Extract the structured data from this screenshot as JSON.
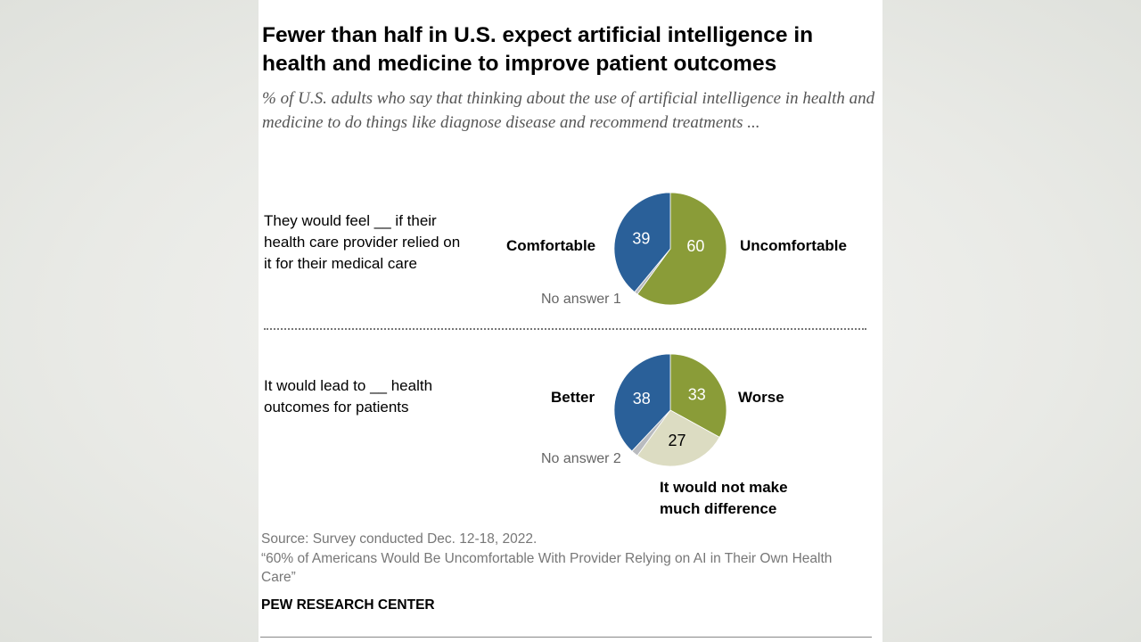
{
  "title": "Fewer than half in U.S. expect artificial intelligence in health and medicine to improve patient outcomes",
  "subtitle": "% of U.S. adults who say that thinking about the use of artificial intelligence in health and medicine to do things like diagnose disease and recommend treatments ...",
  "colors": {
    "blue": "#2a6099",
    "green": "#8a9c38",
    "gray": "#b9bbbf",
    "beige": "#dcdcc2"
  },
  "chart_data": [
    {
      "type": "pie",
      "question": "They would feel __ if their health care provider relied on it for their medical care",
      "slices": [
        {
          "name": "Uncomfortable",
          "value": 60,
          "label": "60",
          "color": "#8a9c38"
        },
        {
          "name": "No answer",
          "value": 1,
          "label": "No answer 1",
          "color": "#b9bbbf"
        },
        {
          "name": "Comfortable",
          "value": 39,
          "label": "39",
          "color": "#2a6099"
        }
      ]
    },
    {
      "type": "pie",
      "question": "It would lead to __ health outcomes for patients",
      "slices": [
        {
          "name": "Worse",
          "value": 33,
          "label": "33",
          "color": "#8a9c38"
        },
        {
          "name": "It would not make much difference",
          "value": 27,
          "label": "27",
          "color": "#dcdcc2"
        },
        {
          "name": "No answer",
          "value": 2,
          "label": "No answer 2",
          "color": "#b9bbbf"
        },
        {
          "name": "Better",
          "value": 38,
          "label": "38",
          "color": "#2a6099"
        }
      ]
    }
  ],
  "source": "Source: Survey conducted Dec. 12-18, 2022.",
  "report": "“60% of Americans Would Be Uncomfortable With Provider Relying on AI in Their Own Health Care”",
  "org": "PEW RESEARCH CENTER"
}
